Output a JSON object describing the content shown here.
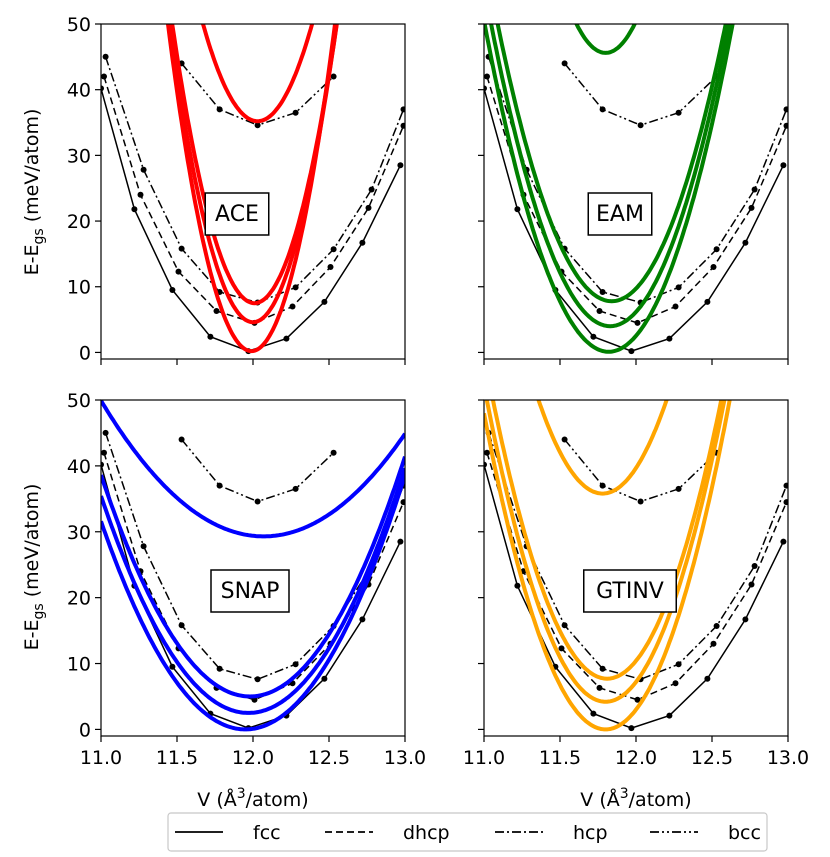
{
  "chart_data": {
    "type": "line",
    "xlabel": "V (Å³/atom)",
    "ylabel": "E-Egs (meV/atom)",
    "ylabel_main": "E-E",
    "ylabel_sub": "gs",
    "ylabel_tail": " (meV/atom)",
    "xlabel_main": "V (Å",
    "xlabel_sup": "3",
    "xlabel_tail": "/atom)",
    "xlim": [
      11.0,
      13.0
    ],
    "ylim": [
      -1,
      50
    ],
    "xticks": [
      11.0,
      11.5,
      12.0,
      12.5,
      13.0
    ],
    "xtick_labels": [
      "11.0",
      "11.5",
      "12.0",
      "12.5",
      "13.0"
    ],
    "yticks": [
      0,
      10,
      20,
      30,
      40,
      50
    ],
    "ytick_labels": [
      "0",
      "10",
      "20",
      "30",
      "40",
      "50"
    ],
    "legend": [
      {
        "name": "fcc",
        "dash": "solid"
      },
      {
        "name": "dhcp",
        "dash": "dashed"
      },
      {
        "name": "hcp",
        "dash": "dashdot"
      },
      {
        "name": "bcc",
        "dash": "dashdotdot"
      }
    ],
    "reference_dft": {
      "color": "#000000",
      "series": [
        {
          "name": "fcc",
          "x": [
            11.0,
            11.22,
            11.47,
            11.72,
            11.97,
            12.22,
            12.47,
            12.72,
            12.97
          ],
          "y": [
            40.2,
            21.8,
            9.5,
            2.4,
            0.2,
            2.1,
            7.7,
            16.7,
            28.5
          ]
        },
        {
          "name": "dhcp",
          "x": [
            11.02,
            11.26,
            11.51,
            11.76,
            12.01,
            12.26,
            12.51,
            12.76,
            12.99
          ],
          "y": [
            42.0,
            24.0,
            12.3,
            6.3,
            4.5,
            7.0,
            13.0,
            22.0,
            34.5
          ]
        },
        {
          "name": "hcp",
          "x": [
            11.03,
            11.28,
            11.53,
            11.78,
            12.03,
            12.28,
            12.53,
            12.78,
            12.99
          ],
          "y": [
            45.0,
            27.8,
            15.8,
            9.2,
            7.6,
            9.9,
            15.7,
            24.8,
            37.0
          ]
        },
        {
          "name": "bcc",
          "x": [
            11.53,
            11.78,
            12.03,
            12.28,
            12.53
          ],
          "y": [
            44.0,
            37.0,
            34.6,
            36.5,
            42.0
          ]
        }
      ]
    },
    "panels": [
      {
        "label": "ACE",
        "color": "#ff0000",
        "fits": [
          {
            "name": "fcc",
            "v0": 11.99,
            "e0": 0.2,
            "k": 165
          },
          {
            "name": "dhcp",
            "v0": 12.0,
            "e0": 4.6,
            "k": 150
          },
          {
            "name": "hcp",
            "v0": 12.01,
            "e0": 7.5,
            "k": 145
          },
          {
            "name": "bcc",
            "v0": 12.03,
            "e0": 35.2,
            "k": 115
          }
        ]
      },
      {
        "label": "EAM",
        "color": "#008000",
        "fits": [
          {
            "name": "fcc",
            "v0": 11.82,
            "e0": 0.1,
            "k": 75
          },
          {
            "name": "dhcp",
            "v0": 11.83,
            "e0": 4.0,
            "k": 75
          },
          {
            "name": "hcp",
            "v0": 11.84,
            "e0": 7.8,
            "k": 75
          },
          {
            "name": "bcc",
            "v0": 11.8,
            "e0": 45.6,
            "k": 120
          }
        ]
      },
      {
        "label": "SNAP",
        "color": "#0000ff",
        "fits": [
          {
            "name": "fcc",
            "v0": 11.95,
            "e0": 0.0,
            "k": 35
          },
          {
            "name": "dhcp",
            "v0": 11.97,
            "e0": 2.5,
            "k": 35
          },
          {
            "name": "hcp",
            "v0": 11.98,
            "e0": 5.0,
            "k": 35
          },
          {
            "name": "bcc",
            "v0": 12.07,
            "e0": 29.3,
            "k": 18
          }
        ]
      },
      {
        "label": "GTINV",
        "color": "#ffa500",
        "fits": [
          {
            "name": "fcc",
            "v0": 11.8,
            "e0": 0.0,
            "k": 75
          },
          {
            "name": "dhcp",
            "v0": 11.8,
            "e0": 4.2,
            "k": 75
          },
          {
            "name": "hcp",
            "v0": 11.81,
            "e0": 7.7,
            "k": 75
          },
          {
            "name": "bcc",
            "v0": 11.78,
            "e0": 35.8,
            "k": 80
          }
        ]
      }
    ]
  }
}
